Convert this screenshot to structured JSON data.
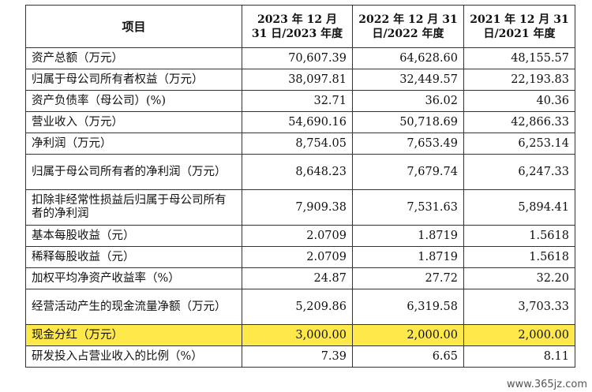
{
  "table": {
    "headers": [
      "项目",
      "2023 年 12 月 31 日/2023 年度",
      "2022 年 12 月 31 日/2022 年度",
      "2021 年 12 月 31 日/2021 年度"
    ],
    "rows": [
      {
        "label": "资产总额（万元）",
        "values": [
          "70,607.39",
          "64,628.60",
          "48,155.57"
        ]
      },
      {
        "label": "归属于母公司所有者权益（万元）",
        "values": [
          "38,097.81",
          "32,449.57",
          "22,193.83"
        ]
      },
      {
        "label": "资产负债率（母公司）(%)",
        "values": [
          "32.71",
          "36.02",
          "40.36"
        ]
      },
      {
        "label": "营业收入（万元）",
        "values": [
          "54,690.16",
          "50,718.69",
          "42,866.33"
        ]
      },
      {
        "label": "净利润（万元）",
        "values": [
          "8,754.05",
          "7,653.49",
          "6,253.14"
        ]
      },
      {
        "label": "归属于母公司所有者的净利润（万元）",
        "values": [
          "8,648.23",
          "7,679.74",
          "6,247.33"
        ]
      },
      {
        "label": "扣除非经常性损益后归属于母公司所有者的净利润",
        "values": [
          "7,909.38",
          "7,531.63",
          "5,894.41"
        ]
      },
      {
        "label": "基本每股收益（元）",
        "values": [
          "2.0709",
          "1.8719",
          "1.5618"
        ]
      },
      {
        "label": "稀释每股收益（元）",
        "values": [
          "2.0709",
          "1.8719",
          "1.5618"
        ]
      },
      {
        "label": "加权平均净资产收益率（%）",
        "values": [
          "24.87",
          "27.72",
          "32.20"
        ]
      },
      {
        "label": "经营活动产生的现金流量净额（万元）",
        "values": [
          "5,209.86",
          "6,319.58",
          "3,703.33"
        ]
      },
      {
        "label": "现金分红（万元）",
        "values": [
          "3,000.00",
          "2,000.00",
          "2,000.00"
        ],
        "highlight": true
      },
      {
        "label": "研发投入占营业收入的比例（%）",
        "values": [
          "7.39",
          "6.65",
          "8.11"
        ]
      }
    ]
  },
  "colors": {
    "highlight": "#ffe94a",
    "border": "#333333"
  },
  "watermark": "www.365jz.com"
}
